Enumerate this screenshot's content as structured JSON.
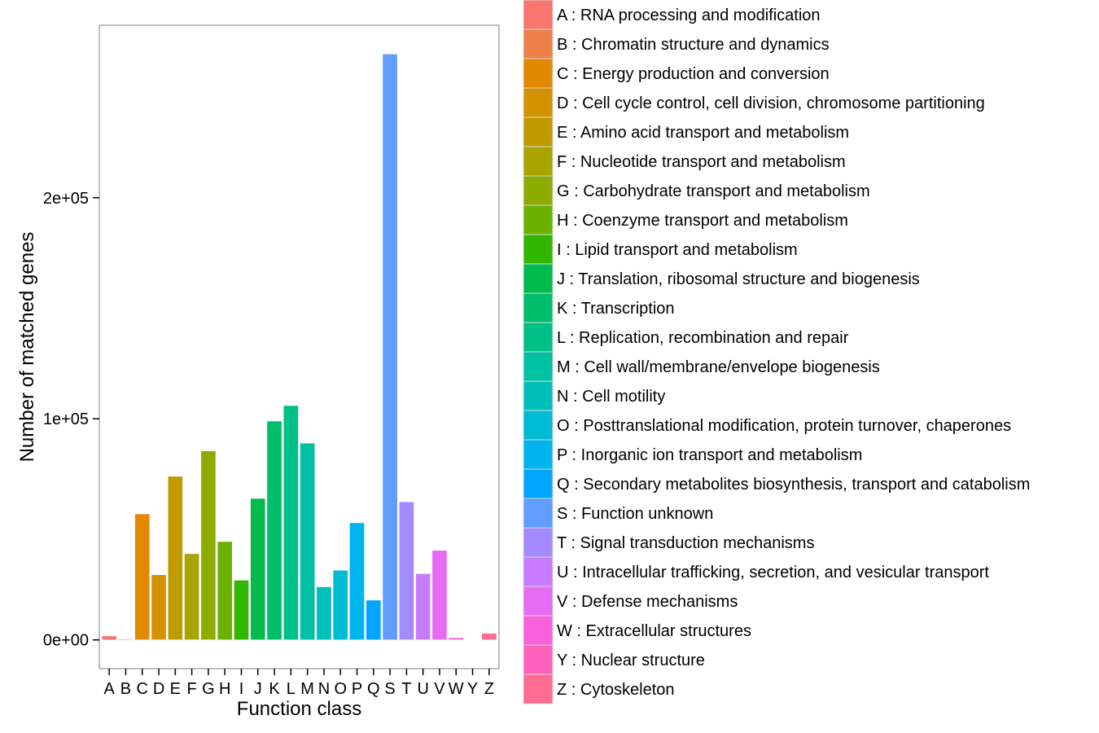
{
  "chart_data": {
    "type": "bar",
    "title": "",
    "xlabel": "Function class",
    "ylabel": "Number of matched genes",
    "ylim": [
      -13000,
      278000
    ],
    "yticks": [
      {
        "value": 0,
        "label": "0e+00"
      },
      {
        "value": 100000,
        "label": "1e+05"
      },
      {
        "value": 200000,
        "label": "2e+05"
      }
    ],
    "grid": false,
    "legend_position": "right",
    "categories": [
      "A",
      "B",
      "C",
      "D",
      "E",
      "F",
      "G",
      "H",
      "I",
      "J",
      "K",
      "L",
      "M",
      "N",
      "O",
      "P",
      "Q",
      "S",
      "T",
      "U",
      "V",
      "W",
      "Y",
      "Z"
    ],
    "values": [
      1800,
      400,
      57000,
      29500,
      74000,
      39000,
      85500,
      44500,
      27000,
      64000,
      99000,
      106000,
      89000,
      24000,
      31500,
      53000,
      18000,
      265000,
      62500,
      30000,
      40500,
      1000,
      200,
      3000
    ],
    "colors": [
      "#F8766D",
      "#EF7F49",
      "#E38900",
      "#D39200",
      "#C09B00",
      "#A9A400",
      "#8EAB00",
      "#6BB100",
      "#31B700",
      "#00BB4E",
      "#00BE6C",
      "#00C088",
      "#00C1A3",
      "#00BFBB",
      "#00BBD4",
      "#00B4EF",
      "#00A6FF",
      "#619CFF",
      "#A58AFF",
      "#C77CFF",
      "#E76BF3",
      "#FA62DB",
      "#FF62BC",
      "#FF6C91"
    ],
    "legend": [
      "A : RNA processing and modification",
      "B : Chromatin structure and dynamics",
      "C : Energy production and conversion",
      "D : Cell cycle control, cell division, chromosome partitioning",
      "E : Amino acid transport and metabolism",
      "F : Nucleotide transport and metabolism",
      "G : Carbohydrate transport and metabolism",
      "H : Coenzyme transport and metabolism",
      "I : Lipid transport and metabolism",
      "J : Translation, ribosomal structure and biogenesis",
      "K : Transcription",
      "L : Replication, recombination and repair",
      "M : Cell wall/membrane/envelope biogenesis",
      "N : Cell motility",
      "O : Posttranslational modification, protein turnover, chaperones",
      "P : Inorganic ion transport and metabolism",
      "Q : Secondary metabolites biosynthesis, transport and catabolism",
      "S : Function unknown",
      "T : Signal transduction mechanisms",
      "U : Intracellular trafficking, secretion, and vesicular transport",
      "V : Defense mechanisms",
      "W : Extracellular structures",
      "Y : Nuclear structure",
      "Z : Cytoskeleton"
    ]
  }
}
